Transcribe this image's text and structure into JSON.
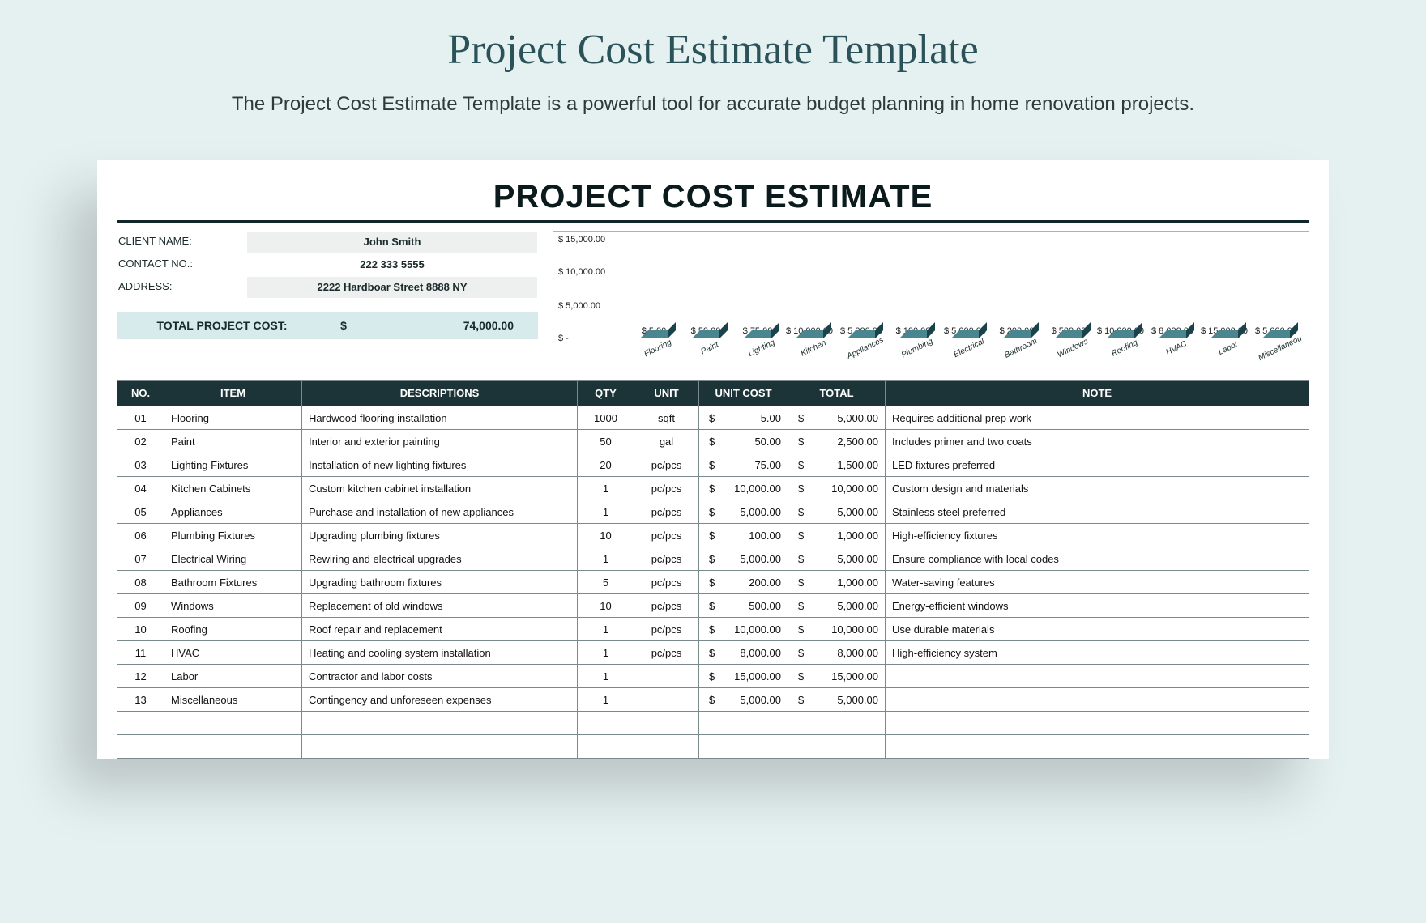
{
  "header": {
    "title": "Project Cost Estimate Template",
    "subtitle": "The Project Cost Estimate Template is a powerful tool for accurate budget planning in home renovation projects."
  },
  "sheet": {
    "title": "PROJECT COST ESTIMATE",
    "client": {
      "name_label": "CLIENT NAME:",
      "name": "John Smith",
      "contact_label": "CONTACT NO.:",
      "contact": "222 333 5555",
      "address_label": "ADDRESS:",
      "address": "2222 Hardboar Street 8888 NY"
    },
    "total": {
      "label": "TOTAL PROJECT COST:",
      "currency": "$",
      "value": "74,000.00"
    }
  },
  "chart": {
    "type": "bar",
    "bar_color": "#2d6169",
    "bar_top_color": "#4a8690",
    "bar_side_color": "#19424a",
    "border_color": "#a8b3b3",
    "label_fontsize": 11,
    "ylim": [
      0,
      15000
    ],
    "yticks": [
      {
        "pos": 0.0,
        "label": "$ 15,000.00"
      },
      {
        "pos": 0.33,
        "label": "$ 10,000.00"
      },
      {
        "pos": 0.67,
        "label": "$ 5,000.00"
      },
      {
        "pos": 1.0,
        "label": "$ -"
      }
    ],
    "bars": [
      {
        "cat": "Flooring",
        "value": 5,
        "label": "$ 5.00"
      },
      {
        "cat": "Paint",
        "value": 50,
        "label": "$ 50.00"
      },
      {
        "cat": "Lighting",
        "value": 75,
        "label": "$ 75.00"
      },
      {
        "cat": "Kitchen",
        "value": 10000,
        "label": "$ 10,000.00"
      },
      {
        "cat": "Appliances",
        "value": 5000,
        "label": "$ 5,000.00"
      },
      {
        "cat": "Plumbing",
        "value": 100,
        "label": "$ 100.00"
      },
      {
        "cat": "Electrical",
        "value": 5000,
        "label": "$ 5,000.00"
      },
      {
        "cat": "Bathroom",
        "value": 200,
        "label": "$ 200.00"
      },
      {
        "cat": "Windows",
        "value": 500,
        "label": "$ 500.00"
      },
      {
        "cat": "Roofing",
        "value": 10000,
        "label": "$ 10,000.00"
      },
      {
        "cat": "HVAC",
        "value": 8000,
        "label": "$ 8,000.00"
      },
      {
        "cat": "Labor",
        "value": 15000,
        "label": "$ 15,000.00"
      },
      {
        "cat": "Miscellaneou",
        "value": 5000,
        "label": "$ 5,000.00"
      }
    ]
  },
  "table": {
    "columns": [
      "NO.",
      "ITEM",
      "DESCRIPTIONS",
      "QTY",
      "UNIT",
      "UNIT COST",
      "TOTAL",
      "NOTE"
    ],
    "currency": "$",
    "rows": [
      {
        "no": "01",
        "item": "Flooring",
        "desc": "Hardwood flooring installation",
        "qty": "1000",
        "unit": "sqft",
        "uc": "5.00",
        "tot": "5,000.00",
        "note": "Requires additional prep work"
      },
      {
        "no": "02",
        "item": "Paint",
        "desc": "Interior and exterior painting",
        "qty": "50",
        "unit": "gal",
        "uc": "50.00",
        "tot": "2,500.00",
        "note": "Includes primer and two coats"
      },
      {
        "no": "03",
        "item": "Lighting Fixtures",
        "desc": "Installation of new lighting fixtures",
        "qty": "20",
        "unit": "pc/pcs",
        "uc": "75.00",
        "tot": "1,500.00",
        "note": "LED fixtures preferred"
      },
      {
        "no": "04",
        "item": "Kitchen Cabinets",
        "desc": "Custom kitchen cabinet installation",
        "qty": "1",
        "unit": "pc/pcs",
        "uc": "10,000.00",
        "tot": "10,000.00",
        "note": "Custom design and materials"
      },
      {
        "no": "05",
        "item": "Appliances",
        "desc": "Purchase and installation of new appliances",
        "qty": "1",
        "unit": "pc/pcs",
        "uc": "5,000.00",
        "tot": "5,000.00",
        "note": "Stainless steel preferred"
      },
      {
        "no": "06",
        "item": "Plumbing Fixtures",
        "desc": "Upgrading plumbing fixtures",
        "qty": "10",
        "unit": "pc/pcs",
        "uc": "100.00",
        "tot": "1,000.00",
        "note": "High-efficiency fixtures"
      },
      {
        "no": "07",
        "item": "Electrical Wiring",
        "desc": "Rewiring and electrical upgrades",
        "qty": "1",
        "unit": "pc/pcs",
        "uc": "5,000.00",
        "tot": "5,000.00",
        "note": "Ensure compliance with local codes"
      },
      {
        "no": "08",
        "item": "Bathroom Fixtures",
        "desc": "Upgrading bathroom fixtures",
        "qty": "5",
        "unit": "pc/pcs",
        "uc": "200.00",
        "tot": "1,000.00",
        "note": "Water-saving features"
      },
      {
        "no": "09",
        "item": "Windows",
        "desc": "Replacement of old windows",
        "qty": "10",
        "unit": "pc/pcs",
        "uc": "500.00",
        "tot": "5,000.00",
        "note": "Energy-efficient windows"
      },
      {
        "no": "10",
        "item": "Roofing",
        "desc": "Roof repair and replacement",
        "qty": "1",
        "unit": "pc/pcs",
        "uc": "10,000.00",
        "tot": "10,000.00",
        "note": "Use durable materials"
      },
      {
        "no": "11",
        "item": "HVAC",
        "desc": "Heating and cooling system installation",
        "qty": "1",
        "unit": "pc/pcs",
        "uc": "8,000.00",
        "tot": "8,000.00",
        "note": "High-efficiency system"
      },
      {
        "no": "12",
        "item": "Labor",
        "desc": "Contractor and labor costs",
        "qty": "1",
        "unit": "",
        "uc": "15,000.00",
        "tot": "15,000.00",
        "note": ""
      },
      {
        "no": "13",
        "item": "Miscellaneous",
        "desc": "Contingency and unforeseen expenses",
        "qty": "1",
        "unit": "",
        "uc": "5,000.00",
        "tot": "5,000.00",
        "note": ""
      }
    ],
    "empty_rows": 2
  },
  "colors": {
    "page_bg": "#e5f1f1",
    "title_color": "#2a5258",
    "header_bg": "#1c3438",
    "total_bg": "#d7ebec",
    "border": "#7a8a8c"
  }
}
